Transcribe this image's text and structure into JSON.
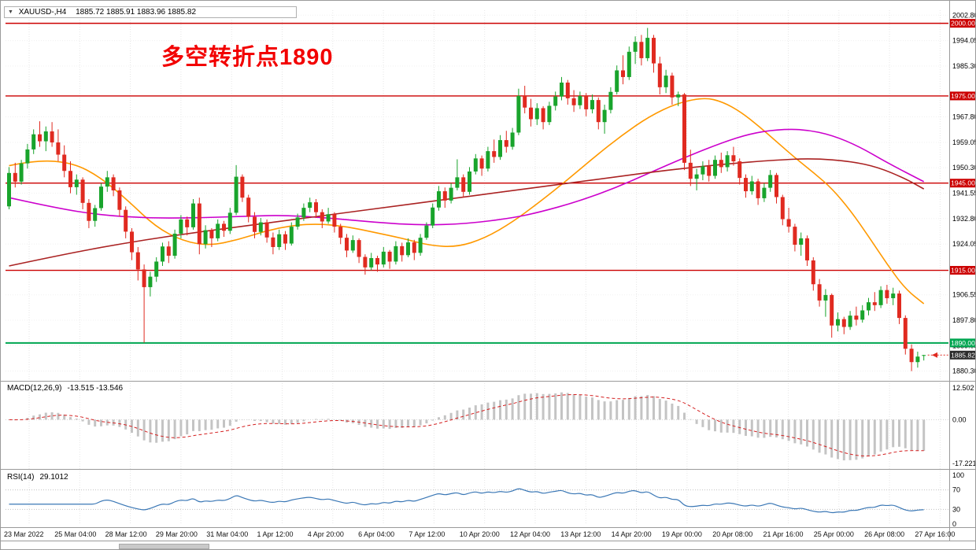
{
  "header": {
    "collapse_icon": "▼",
    "symbol": "XAUUSD-,H4",
    "ohlc": "1885.72 1885.91 1883.96 1885.82"
  },
  "annotation": {
    "text": "多空转折点1890",
    "color": "#f20000"
  },
  "colors": {
    "up_candle": "#19a42c",
    "down_candle": "#e02a20",
    "level_red": "#cc0000",
    "level_green": "#00a651",
    "ma_fast": "#ff9900",
    "ma_mid": "#cc00cc",
    "ma_slow": "#aa2222",
    "macd_histogram": "#c4c4c4",
    "macd_signal": "#d42020",
    "rsi_line": "#3a77b5",
    "current_badge": "#2b2b2b",
    "grid": "#e6e6e6"
  },
  "chart_data": {
    "type": "candlestick",
    "symbol": "XAUUSD",
    "timeframe": "H4",
    "ylim": [
      1877.5,
      2004.5
    ],
    "price_ticks": [
      2002.8,
      1994.05,
      1985.3,
      1967.8,
      1959.05,
      1950.3,
      1941.55,
      1932.8,
      1924.05,
      1906.55,
      1897.8,
      1889.05,
      1880.3
    ],
    "h_levels": [
      {
        "price": 2000.0,
        "label": "2000.00",
        "color": "#cc0000"
      },
      {
        "price": 1975.0,
        "label": "1975.00",
        "color": "#cc0000"
      },
      {
        "price": 1945.0,
        "label": "1945.00",
        "color": "#cc0000"
      },
      {
        "price": 1915.0,
        "label": "1915.00",
        "color": "#cc0000"
      },
      {
        "price": 1890.0,
        "label": "1890.00",
        "color": "#00a651"
      }
    ],
    "current_price": {
      "value": 1885.82,
      "label": "1885.82"
    },
    "candles": [
      [
        1937.0,
        1950.5,
        1936.0,
        1948.5
      ],
      [
        1948.5,
        1952.0,
        1943.5,
        1945.5
      ],
      [
        1945.5,
        1953.0,
        1944.5,
        1951.8
      ],
      [
        1951.8,
        1958.5,
        1950.0,
        1956.6
      ],
      [
        1956.6,
        1963.5,
        1955.0,
        1961.8
      ],
      [
        1961.8,
        1966.3,
        1957.5,
        1959.4
      ],
      [
        1959.4,
        1964.5,
        1956.0,
        1962.8
      ],
      [
        1962.8,
        1966.0,
        1957.5,
        1959.0
      ],
      [
        1959.0,
        1963.5,
        1952.5,
        1954.8
      ],
      [
        1954.8,
        1958.0,
        1947.0,
        1949.2
      ],
      [
        1949.2,
        1952.5,
        1941.5,
        1943.6
      ],
      [
        1943.6,
        1948.0,
        1941.0,
        1946.2
      ],
      [
        1946.2,
        1947.0,
        1936.0,
        1938.2
      ],
      [
        1938.2,
        1939.5,
        1929.5,
        1932.0
      ],
      [
        1932.0,
        1937.5,
        1930.0,
        1936.4
      ],
      [
        1936.4,
        1945.0,
        1935.5,
        1943.8
      ],
      [
        1943.8,
        1949.2,
        1942.0,
        1947.0
      ],
      [
        1947.0,
        1948.0,
        1940.5,
        1942.5
      ],
      [
        1942.5,
        1943.5,
        1933.5,
        1935.8
      ],
      [
        1935.8,
        1937.0,
        1926.0,
        1928.3
      ],
      [
        1928.3,
        1929.5,
        1918.5,
        1921.2
      ],
      [
        1921.2,
        1923.0,
        1911.5,
        1915.3
      ],
      [
        1915.3,
        1917.0,
        1890.1,
        1909.2
      ],
      [
        1909.2,
        1914.5,
        1906.0,
        1912.8
      ],
      [
        1912.8,
        1919.5,
        1911.0,
        1918.0
      ],
      [
        1918.0,
        1924.5,
        1916.5,
        1923.2
      ],
      [
        1923.2,
        1925.0,
        1917.5,
        1920.0
      ],
      [
        1920.0,
        1929.0,
        1919.0,
        1927.6
      ],
      [
        1927.6,
        1934.0,
        1926.0,
        1932.5
      ],
      [
        1932.5,
        1933.5,
        1927.0,
        1929.8
      ],
      [
        1929.8,
        1939.5,
        1929.0,
        1938.0
      ],
      [
        1938.0,
        1940.0,
        1920.5,
        1924.0
      ],
      [
        1924.0,
        1930.5,
        1922.5,
        1928.8
      ],
      [
        1928.8,
        1929.5,
        1923.0,
        1926.0
      ],
      [
        1926.0,
        1932.5,
        1925.0,
        1931.0
      ],
      [
        1931.0,
        1932.0,
        1926.5,
        1928.6
      ],
      [
        1928.6,
        1936.5,
        1927.5,
        1934.8
      ],
      [
        1934.8,
        1951.2,
        1934.0,
        1947.2
      ],
      [
        1947.2,
        1948.0,
        1938.5,
        1940.0
      ],
      [
        1940.0,
        1941.0,
        1931.5,
        1933.4
      ],
      [
        1933.4,
        1935.0,
        1926.0,
        1928.2
      ],
      [
        1928.2,
        1933.0,
        1927.0,
        1931.5
      ],
      [
        1931.5,
        1932.5,
        1924.5,
        1926.3
      ],
      [
        1926.3,
        1928.0,
        1920.5,
        1923.0
      ],
      [
        1923.0,
        1929.0,
        1922.0,
        1927.4
      ],
      [
        1927.4,
        1928.5,
        1922.0,
        1924.2
      ],
      [
        1924.2,
        1931.5,
        1923.5,
        1930.0
      ],
      [
        1930.0,
        1934.5,
        1929.0,
        1933.2
      ],
      [
        1933.2,
        1938.0,
        1932.0,
        1936.5
      ],
      [
        1936.5,
        1940.0,
        1935.0,
        1938.4
      ],
      [
        1938.4,
        1939.5,
        1933.0,
        1935.0
      ],
      [
        1935.0,
        1936.0,
        1929.5,
        1931.8
      ],
      [
        1931.8,
        1936.5,
        1931.0,
        1934.3
      ],
      [
        1934.3,
        1935.0,
        1928.0,
        1930.0
      ],
      [
        1930.0,
        1931.0,
        1924.0,
        1926.2
      ],
      [
        1926.2,
        1927.5,
        1919.5,
        1921.8
      ],
      [
        1921.8,
        1927.0,
        1921.0,
        1925.4
      ],
      [
        1925.4,
        1926.0,
        1917.5,
        1919.6
      ],
      [
        1919.6,
        1920.5,
        1913.5,
        1916.0
      ],
      [
        1916.0,
        1921.0,
        1915.0,
        1919.2
      ],
      [
        1919.2,
        1920.0,
        1914.5,
        1917.0
      ],
      [
        1917.0,
        1923.0,
        1916.0,
        1921.4
      ],
      [
        1921.4,
        1922.0,
        1915.5,
        1918.0
      ],
      [
        1918.0,
        1925.0,
        1917.0,
        1923.3
      ],
      [
        1923.3,
        1924.5,
        1918.0,
        1920.2
      ],
      [
        1920.2,
        1926.0,
        1919.5,
        1924.6
      ],
      [
        1924.6,
        1925.5,
        1918.5,
        1921.0
      ],
      [
        1921.0,
        1927.5,
        1920.0,
        1926.2
      ],
      [
        1926.2,
        1931.5,
        1925.5,
        1930.4
      ],
      [
        1930.4,
        1938.0,
        1929.5,
        1936.6
      ],
      [
        1936.6,
        1944.0,
        1935.5,
        1942.2
      ],
      [
        1942.2,
        1943.5,
        1936.5,
        1939.0
      ],
      [
        1939.0,
        1945.0,
        1938.0,
        1943.4
      ],
      [
        1943.4,
        1953.2,
        1942.5,
        1947.0
      ],
      [
        1947.0,
        1948.0,
        1940.0,
        1942.0
      ],
      [
        1942.0,
        1950.5,
        1941.0,
        1949.0
      ],
      [
        1949.0,
        1955.0,
        1948.0,
        1953.5
      ],
      [
        1953.5,
        1954.5,
        1947.5,
        1950.0
      ],
      [
        1950.0,
        1957.5,
        1949.0,
        1956.0
      ],
      [
        1956.0,
        1960.0,
        1952.0,
        1954.0
      ],
      [
        1954.0,
        1961.5,
        1953.0,
        1959.8
      ],
      [
        1959.8,
        1963.0,
        1955.5,
        1957.5
      ],
      [
        1957.5,
        1964.0,
        1956.5,
        1962.4
      ],
      [
        1962.4,
        1977.5,
        1961.5,
        1975.0
      ],
      [
        1975.0,
        1978.5,
        1969.0,
        1971.0
      ],
      [
        1971.0,
        1974.0,
        1964.5,
        1967.0
      ],
      [
        1967.0,
        1972.5,
        1965.0,
        1970.8
      ],
      [
        1970.8,
        1971.5,
        1963.5,
        1966.0
      ],
      [
        1966.0,
        1973.0,
        1965.0,
        1971.6
      ],
      [
        1971.6,
        1976.5,
        1970.0,
        1974.8
      ],
      [
        1974.8,
        1981.5,
        1973.5,
        1979.6
      ],
      [
        1979.6,
        1980.5,
        1972.0,
        1974.2
      ],
      [
        1974.2,
        1977.0,
        1969.5,
        1971.8
      ],
      [
        1971.8,
        1976.5,
        1970.5,
        1975.0
      ],
      [
        1975.0,
        1976.0,
        1968.0,
        1970.4
      ],
      [
        1970.4,
        1975.5,
        1969.0,
        1973.6
      ],
      [
        1973.6,
        1974.5,
        1963.5,
        1966.0
      ],
      [
        1966.0,
        1972.0,
        1962.0,
        1970.2
      ],
      [
        1970.2,
        1978.0,
        1969.0,
        1976.4
      ],
      [
        1976.4,
        1985.5,
        1975.5,
        1983.8
      ],
      [
        1983.8,
        1989.0,
        1979.0,
        1981.5
      ],
      [
        1981.5,
        1992.0,
        1980.5,
        1990.2
      ],
      [
        1990.2,
        1995.5,
        1986.0,
        1993.6
      ],
      [
        1993.6,
        1996.0,
        1985.5,
        1988.0
      ],
      [
        1988.0,
        1998.4,
        1987.0,
        1995.0
      ],
      [
        1995.0,
        1996.0,
        1983.0,
        1986.2
      ],
      [
        1986.2,
        1988.5,
        1975.5,
        1978.0
      ],
      [
        1978.0,
        1984.0,
        1976.0,
        1982.0
      ],
      [
        1982.0,
        1983.0,
        1972.0,
        1974.5
      ],
      [
        1974.5,
        1976.5,
        1971.5,
        1975.5
      ],
      [
        1975.5,
        1976.0,
        1949.5,
        1952.0
      ],
      [
        1952.0,
        1956.5,
        1944.0,
        1946.5
      ],
      [
        1946.5,
        1950.0,
        1942.5,
        1948.0
      ],
      [
        1948.0,
        1952.5,
        1946.0,
        1950.8
      ],
      [
        1950.8,
        1953.0,
        1945.5,
        1947.5
      ],
      [
        1947.5,
        1954.5,
        1946.5,
        1953.0
      ],
      [
        1953.0,
        1955.5,
        1948.5,
        1950.5
      ],
      [
        1950.5,
        1956.0,
        1949.0,
        1954.6
      ],
      [
        1954.6,
        1957.5,
        1951.0,
        1952.5
      ],
      [
        1952.5,
        1953.5,
        1944.5,
        1946.8
      ],
      [
        1946.8,
        1948.0,
        1940.0,
        1942.2
      ],
      [
        1942.2,
        1947.5,
        1941.0,
        1945.6
      ],
      [
        1945.6,
        1946.5,
        1937.5,
        1939.8
      ],
      [
        1939.8,
        1945.0,
        1938.5,
        1943.4
      ],
      [
        1943.4,
        1949.5,
        1942.0,
        1947.8
      ],
      [
        1947.8,
        1948.5,
        1938.0,
        1940.2
      ],
      [
        1940.2,
        1941.0,
        1930.5,
        1932.6
      ],
      [
        1932.6,
        1936.5,
        1928.0,
        1930.0
      ],
      [
        1930.0,
        1931.0,
        1921.5,
        1923.8
      ],
      [
        1923.8,
        1928.0,
        1920.0,
        1926.0
      ],
      [
        1926.0,
        1927.0,
        1916.5,
        1918.4
      ],
      [
        1918.4,
        1919.5,
        1908.0,
        1910.2
      ],
      [
        1910.2,
        1912.0,
        1902.5,
        1904.6
      ],
      [
        1904.6,
        1908.5,
        1899.0,
        1906.5
      ],
      [
        1906.5,
        1907.0,
        1891.8,
        1896.0
      ],
      [
        1896.0,
        1900.5,
        1894.0,
        1898.2
      ],
      [
        1898.2,
        1899.0,
        1893.0,
        1895.5
      ],
      [
        1895.5,
        1901.0,
        1894.5,
        1899.4
      ],
      [
        1899.4,
        1902.5,
        1896.0,
        1898.0
      ],
      [
        1898.0,
        1903.0,
        1897.0,
        1901.2
      ],
      [
        1901.2,
        1905.5,
        1899.5,
        1904.0
      ],
      [
        1904.0,
        1907.5,
        1901.0,
        1903.0
      ],
      [
        1903.0,
        1909.5,
        1902.0,
        1908.2
      ],
      [
        1908.2,
        1910.0,
        1903.5,
        1905.4
      ],
      [
        1905.4,
        1909.0,
        1903.0,
        1907.0
      ],
      [
        1907.0,
        1908.0,
        1896.5,
        1898.6
      ],
      [
        1898.6,
        1899.5,
        1886.0,
        1888.0
      ],
      [
        1888.0,
        1889.5,
        1880.3,
        1883.4
      ],
      [
        1883.4,
        1887.0,
        1881.5,
        1885.3
      ],
      [
        1885.72,
        1885.91,
        1883.96,
        1885.82
      ]
    ],
    "ma_lines": [
      {
        "name": "ma-line-fast-orange",
        "color": "#ff9900",
        "points": [
          [
            0.0,
            1951
          ],
          [
            0.03,
            1953
          ],
          [
            0.07,
            1952
          ],
          [
            0.1,
            1947
          ],
          [
            0.13,
            1939
          ],
          [
            0.16,
            1930
          ],
          [
            0.19,
            1925
          ],
          [
            0.22,
            1923.5
          ],
          [
            0.25,
            1925.5
          ],
          [
            0.28,
            1928.5
          ],
          [
            0.31,
            1930.5
          ],
          [
            0.34,
            1931
          ],
          [
            0.37,
            1930
          ],
          [
            0.4,
            1928
          ],
          [
            0.43,
            1926
          ],
          [
            0.46,
            1923.5
          ],
          [
            0.49,
            1923
          ],
          [
            0.52,
            1926
          ],
          [
            0.55,
            1931.5
          ],
          [
            0.58,
            1938.5
          ],
          [
            0.61,
            1946
          ],
          [
            0.64,
            1954
          ],
          [
            0.67,
            1961.5
          ],
          [
            0.7,
            1968
          ],
          [
            0.73,
            1972.5
          ],
          [
            0.76,
            1974.5
          ],
          [
            0.78,
            1973
          ],
          [
            0.8,
            1969.5
          ],
          [
            0.82,
            1964.5
          ],
          [
            0.84,
            1959
          ],
          [
            0.86,
            1953.5
          ],
          [
            0.88,
            1948.5
          ],
          [
            0.9,
            1943
          ],
          [
            0.92,
            1935.5
          ],
          [
            0.94,
            1926.5
          ],
          [
            0.96,
            1917
          ],
          [
            0.98,
            1908.5
          ],
          [
            1.0,
            1903.5
          ]
        ]
      },
      {
        "name": "ma-line-mid-magenta",
        "color": "#cc00cc",
        "points": [
          [
            0.0,
            1940
          ],
          [
            0.05,
            1936.5
          ],
          [
            0.1,
            1934
          ],
          [
            0.15,
            1933
          ],
          [
            0.2,
            1933
          ],
          [
            0.25,
            1933.5
          ],
          [
            0.3,
            1934
          ],
          [
            0.35,
            1933
          ],
          [
            0.4,
            1931.5
          ],
          [
            0.45,
            1930.5
          ],
          [
            0.5,
            1931
          ],
          [
            0.55,
            1933
          ],
          [
            0.58,
            1935
          ],
          [
            0.62,
            1938.5
          ],
          [
            0.66,
            1943
          ],
          [
            0.7,
            1948.5
          ],
          [
            0.74,
            1954
          ],
          [
            0.78,
            1959
          ],
          [
            0.81,
            1962
          ],
          [
            0.84,
            1963.5
          ],
          [
            0.87,
            1963.5
          ],
          [
            0.9,
            1961.5
          ],
          [
            0.93,
            1957.5
          ],
          [
            0.96,
            1952
          ],
          [
            1.0,
            1945.5
          ]
        ]
      },
      {
        "name": "ma-line-slow-darkred",
        "color": "#aa2222",
        "points": [
          [
            0.0,
            1916.5
          ],
          [
            0.06,
            1920.5
          ],
          [
            0.12,
            1924
          ],
          [
            0.18,
            1927
          ],
          [
            0.24,
            1929.5
          ],
          [
            0.3,
            1932
          ],
          [
            0.36,
            1934.5
          ],
          [
            0.42,
            1937
          ],
          [
            0.48,
            1939.5
          ],
          [
            0.54,
            1942
          ],
          [
            0.6,
            1944.5
          ],
          [
            0.66,
            1947
          ],
          [
            0.72,
            1949.5
          ],
          [
            0.78,
            1951.5
          ],
          [
            0.84,
            1953
          ],
          [
            0.88,
            1953.5
          ],
          [
            0.92,
            1952.5
          ],
          [
            0.95,
            1950.5
          ],
          [
            0.98,
            1946.5
          ],
          [
            1.0,
            1943
          ]
        ]
      }
    ],
    "time_labels": [
      "23 Mar 2022",
      "25 Mar 04:00",
      "28 Mar 12:00",
      "29 Mar 20:00",
      "31 Mar 04:00",
      "1 Apr 12:00",
      "4 Apr 20:00",
      "6 Apr 04:00",
      "7 Apr 12:00",
      "10 Apr 20:00",
      "12 Apr 04:00",
      "13 Apr 12:00",
      "14 Apr 20:00",
      "19 Apr 00:00",
      "20 Apr 08:00",
      "21 Apr 16:00",
      "25 Apr 00:00",
      "26 Apr 08:00",
      "27 Apr 16:00"
    ],
    "macd": {
      "label": "MACD(12,26,9)",
      "values_text": "-13.515 -13.546",
      "params": [
        12,
        26,
        9
      ],
      "ticks": [
        "12.502",
        "0.00",
        "-17.221"
      ],
      "ylim": [
        -17.221,
        12.502
      ]
    },
    "rsi": {
      "label": "RSI(14)",
      "value_text": "29.1012",
      "period": 14,
      "ticks": [
        "100",
        "70",
        "30",
        "0"
      ],
      "levels": [
        70,
        30
      ],
      "ylim": [
        0,
        100
      ]
    }
  }
}
